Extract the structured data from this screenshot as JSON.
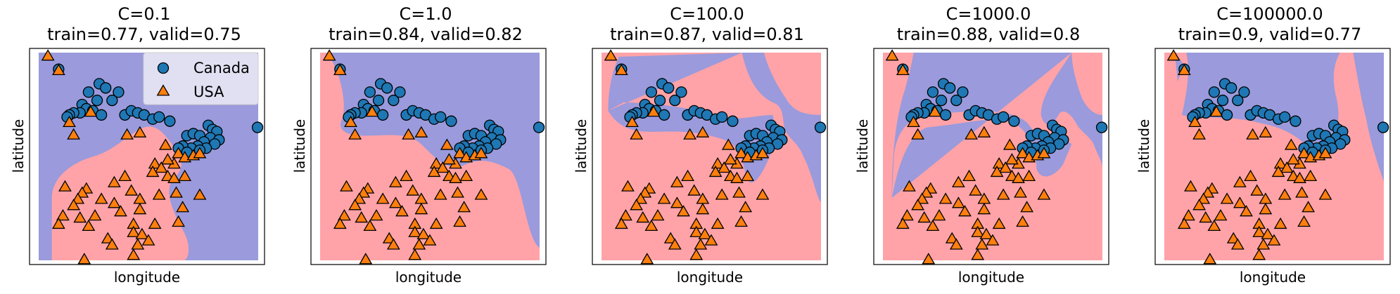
{
  "colors": {
    "canada_region": "#9a9adc",
    "usa_region": "#ffa3a8",
    "canada_point": "#1f77b4",
    "usa_point": "#ff7f0e",
    "edge": "#000000"
  },
  "chart_data": [
    {
      "type": "scatter",
      "title": "C=0.1",
      "subtitle": "train=0.77, valid=0.75",
      "xlabel": "longitude",
      "ylabel": "latitude",
      "legend": {
        "placement": "top-right",
        "entries": [
          "Canada",
          "USA"
        ]
      },
      "ticks": false
    },
    {
      "type": "scatter",
      "title": "C=1.0",
      "subtitle": "train=0.84, valid=0.82",
      "xlabel": "longitude",
      "ylabel": "latitude",
      "ticks": false
    },
    {
      "type": "scatter",
      "title": "C=100.0",
      "subtitle": "train=0.87, valid=0.81",
      "xlabel": "longitude",
      "ylabel": "latitude",
      "ticks": false
    },
    {
      "type": "scatter",
      "title": "C=1000.0",
      "subtitle": "train=0.88, valid=0.8",
      "xlabel": "longitude",
      "ylabel": "latitude",
      "ticks": false
    },
    {
      "type": "scatter",
      "title": "C=100000.0",
      "subtitle": "train=0.9, valid=0.77",
      "xlabel": "longitude",
      "ylabel": "latitude",
      "ticks": false
    }
  ]
}
